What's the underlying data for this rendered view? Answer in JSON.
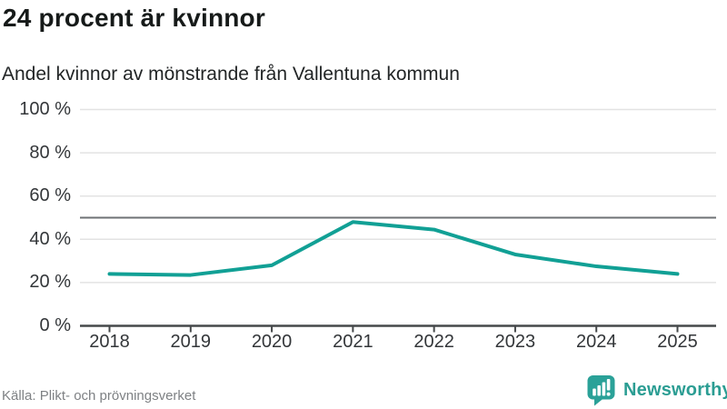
{
  "chart_data": {
    "type": "line",
    "title": "24 procent är kvinnor",
    "subtitle": "Andel kvinnor av mönstrande från Vallentuna kommun",
    "x": [
      2018,
      2019,
      2020,
      2021,
      2022,
      2023,
      2024,
      2025
    ],
    "series": [
      {
        "name": "Andel kvinnor av mönstrande",
        "values": [
          24,
          23.5,
          28,
          48,
          44.5,
          33,
          27.5,
          24
        ]
      }
    ],
    "unit": "%",
    "ylim": [
      0,
      100
    ],
    "yticks": [
      0,
      20,
      40,
      60,
      80,
      100
    ],
    "ytick_labels": [
      "0 %",
      "20 %",
      "40 %",
      "60 %",
      "80 %",
      "100 %"
    ],
    "xtick_labels": [
      "2018",
      "2019",
      "2020",
      "2021",
      "2022",
      "2023",
      "2024",
      "2025"
    ],
    "reference_line": 50,
    "grid": true,
    "legend": "none",
    "line_color": "#11a095"
  },
  "footer": {
    "source": "Källa: Plikt- och prövningsverket",
    "brand": "Newsworthy"
  },
  "icons": {
    "logo": "newsworthy-speech-bubble-bar-chart-icon"
  },
  "colors": {
    "line": "#11a095",
    "logo": "#2aa198",
    "logo_text": "#2b9d93",
    "reference_line": "#6e7174",
    "gridline": "#e3e3e3",
    "axis": "#45484a",
    "title_text": "#161a19",
    "source_text": "#7e8184"
  }
}
